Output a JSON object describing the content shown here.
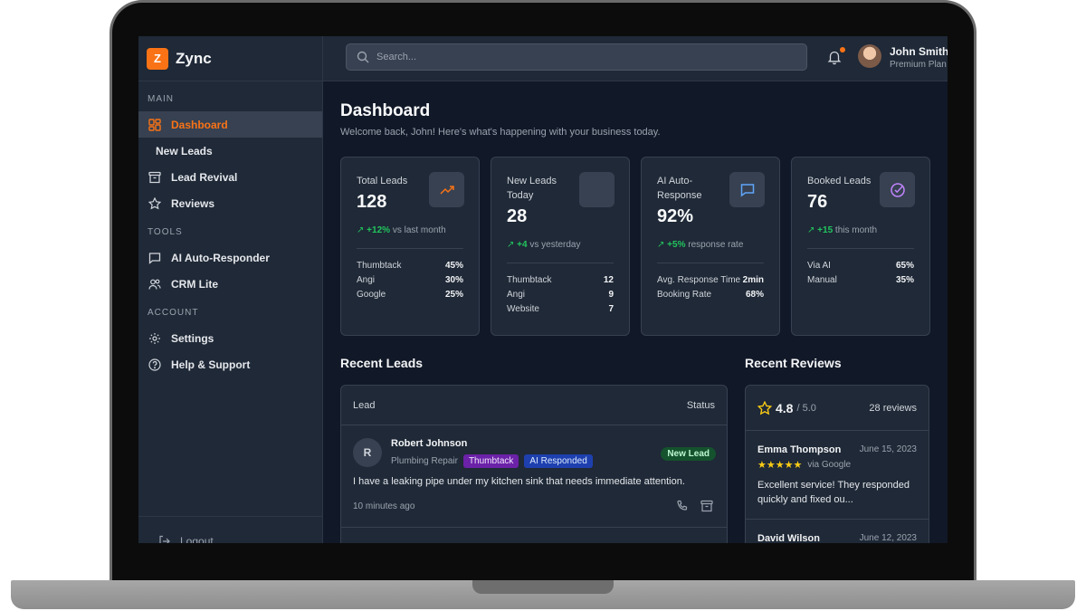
{
  "brand": {
    "logo_letter": "Z",
    "name": "Zync",
    "accent": "#f97316"
  },
  "search": {
    "placeholder": "Search..."
  },
  "user": {
    "name": "John Smith",
    "plan": "Premium Plan"
  },
  "sidebar": {
    "sections": {
      "main": "MAIN",
      "tools": "TOOLS",
      "account": "ACCOUNT"
    },
    "items": {
      "dashboard": "Dashboard",
      "new_leads": "New Leads",
      "lead_revival": "Lead Revival",
      "reviews": "Reviews",
      "ai_auto_responder": "AI Auto-Responder",
      "crm_lite": "CRM Lite",
      "settings": "Settings",
      "help_support": "Help & Support",
      "logout": "Logout"
    }
  },
  "page": {
    "title": "Dashboard",
    "subtitle": "Welcome back, John! Here's what's happening with your business today."
  },
  "stats": [
    {
      "label": "Total Leads",
      "value": "128",
      "trend_value": "+12%",
      "trend_text": "vs last month",
      "icon": "trending-up-icon",
      "rows": [
        {
          "k": "Thumbtack",
          "v": "45%"
        },
        {
          "k": "Angi",
          "v": "30%"
        },
        {
          "k": "Google",
          "v": "25%"
        }
      ]
    },
    {
      "label": "New Leads Today",
      "value": "28",
      "trend_value": "+4",
      "trend_text": "vs yesterday",
      "icon": "blank-icon",
      "rows": [
        {
          "k": "Thumbtack",
          "v": "12"
        },
        {
          "k": "Angi",
          "v": "9"
        },
        {
          "k": "Website",
          "v": "7"
        }
      ]
    },
    {
      "label": "AI Auto-Response",
      "value": "92%",
      "trend_value": "+5%",
      "trend_text": "response rate",
      "icon": "message-icon",
      "rows": [
        {
          "k": "Avg. Response Time",
          "v": "2min"
        },
        {
          "k": "Booking Rate",
          "v": "68%"
        }
      ]
    },
    {
      "label": "Booked Leads",
      "value": "76",
      "trend_value": "+15",
      "trend_text": "this month",
      "icon": "check-circle-icon",
      "rows": [
        {
          "k": "Via AI",
          "v": "65%"
        },
        {
          "k": "Manual",
          "v": "35%"
        }
      ]
    }
  ],
  "recent_leads": {
    "title": "Recent Leads",
    "col_lead": "Lead",
    "col_status": "Status",
    "items": [
      {
        "initial": "R",
        "name": "Robert Johnson",
        "service": "Plumbing Repair",
        "tags": [
          "Thumbtack",
          "AI Responded"
        ],
        "status": "New Lead",
        "message": "I have a leaking pipe under my kitchen sink that needs immediate attention.",
        "time": "10 minutes ago"
      }
    ]
  },
  "recent_reviews": {
    "title": "Recent Reviews",
    "rating": "4.8",
    "out_of": "/ 5.0",
    "count": "28 reviews",
    "items": [
      {
        "name": "Emma Thompson",
        "date": "June 15, 2023",
        "stars": "★★★★★",
        "source": "via Google",
        "text": "Excellent service! They responded quickly and fixed ou..."
      },
      {
        "name": "David Wilson",
        "date": "June 12, 2023"
      }
    ]
  }
}
